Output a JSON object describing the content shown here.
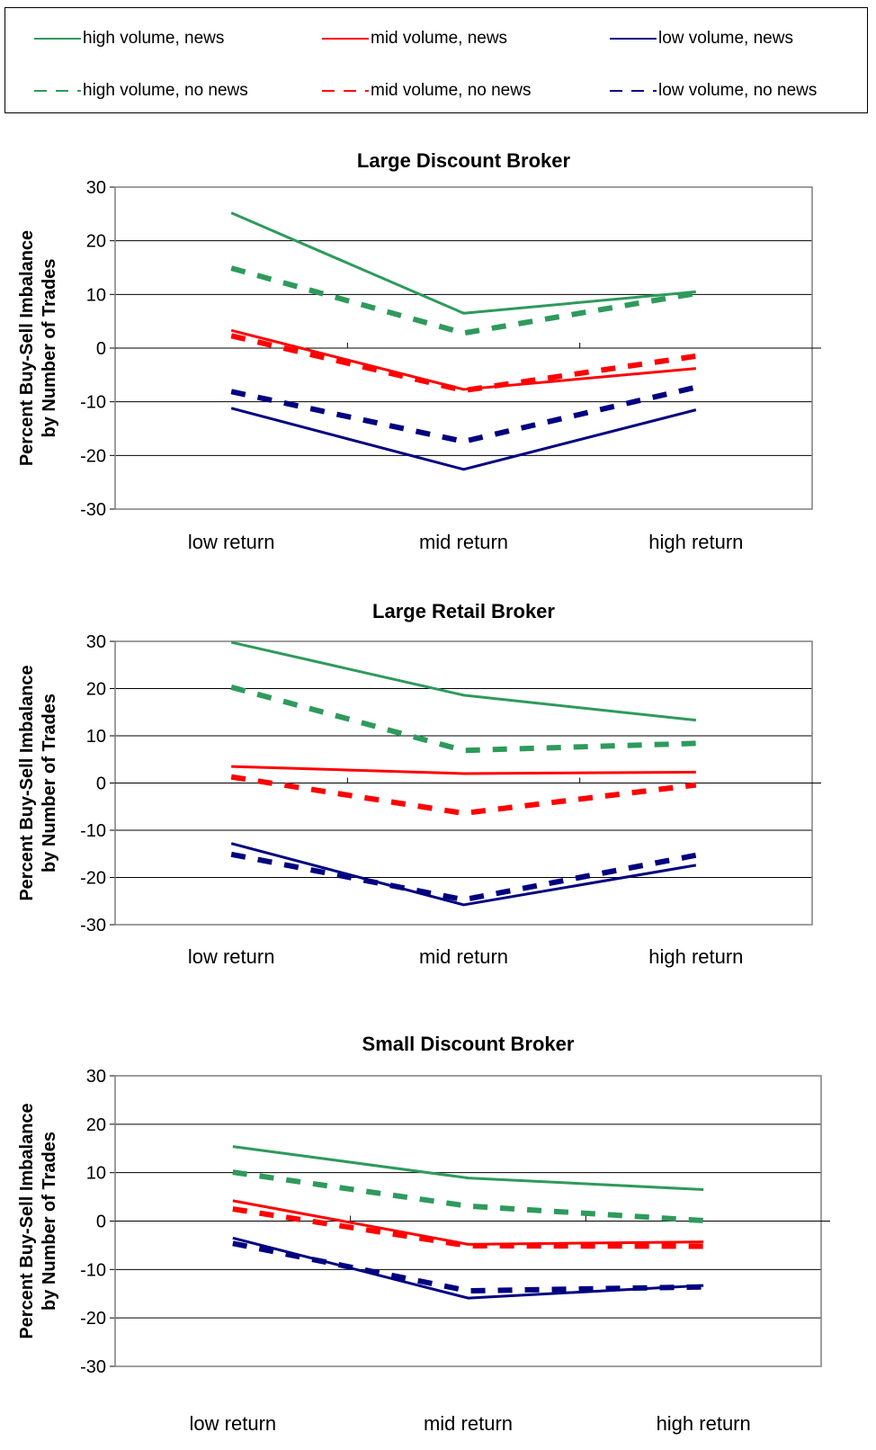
{
  "legend": [
    {
      "label": "high volume, news",
      "color": "#2e9a5c",
      "dashed": false
    },
    {
      "label": "mid volume, news",
      "color": "#ff0000",
      "dashed": false
    },
    {
      "label": "low volume, news",
      "color": "#000080",
      "dashed": false
    },
    {
      "label": "high volume, no news",
      "color": "#2e9a5c",
      "dashed": true
    },
    {
      "label": "mid volume, no news",
      "color": "#ff0000",
      "dashed": true
    },
    {
      "label": "low volume, no news",
      "color": "#000080",
      "dashed": true
    }
  ],
  "chart_data": [
    {
      "type": "line",
      "title": "Large Discount Broker",
      "ylabel": [
        "Percent Buy-Sell Imbalance",
        "by Number of Trades"
      ],
      "categories": [
        "low return",
        "mid return",
        "high return"
      ],
      "ylim": [
        -30,
        30
      ],
      "yticks": [
        30,
        20,
        10,
        0,
        -10,
        -20,
        -30
      ],
      "grid": true,
      "series": [
        {
          "name": "high volume, news",
          "color": "#2e9a5c",
          "dashed": false,
          "values": [
            25.2,
            6.5,
            10.5
          ]
        },
        {
          "name": "mid volume, news",
          "color": "#ff0000",
          "dashed": false,
          "values": [
            3.3,
            -7.7,
            -3.8
          ]
        },
        {
          "name": "low volume, news",
          "color": "#000080",
          "dashed": false,
          "values": [
            -11.2,
            -22.6,
            -11.5
          ]
        },
        {
          "name": "high volume, no news",
          "color": "#2e9a5c",
          "dashed": true,
          "values": [
            14.9,
            2.8,
            10.2
          ]
        },
        {
          "name": "mid volume, no news",
          "color": "#ff0000",
          "dashed": true,
          "values": [
            2.3,
            -7.9,
            -1.5
          ]
        },
        {
          "name": "low volume, no news",
          "color": "#000080",
          "dashed": true,
          "values": [
            -8.1,
            -17.4,
            -7.3
          ]
        }
      ]
    },
    {
      "type": "line",
      "title": "Large Retail Broker",
      "ylabel": [
        "Percent Buy-Sell Imbalance",
        "by Number of Trades"
      ],
      "categories": [
        "low return",
        "mid return",
        "high return"
      ],
      "ylim": [
        -30,
        30
      ],
      "yticks": [
        30,
        20,
        10,
        0,
        -10,
        -20,
        -30
      ],
      "grid": true,
      "series": [
        {
          "name": "high volume, news",
          "color": "#2e9a5c",
          "dashed": false,
          "values": [
            29.8,
            18.6,
            13.3
          ]
        },
        {
          "name": "mid volume, news",
          "color": "#ff0000",
          "dashed": false,
          "values": [
            3.5,
            2.0,
            2.3
          ]
        },
        {
          "name": "low volume, news",
          "color": "#000080",
          "dashed": false,
          "values": [
            -12.8,
            -25.8,
            -17.4
          ]
        },
        {
          "name": "high volume, no news",
          "color": "#2e9a5c",
          "dashed": true,
          "values": [
            20.3,
            6.9,
            8.4
          ]
        },
        {
          "name": "mid volume, no news",
          "color": "#ff0000",
          "dashed": true,
          "values": [
            1.3,
            -6.4,
            -0.4
          ]
        },
        {
          "name": "low volume, no news",
          "color": "#000080",
          "dashed": true,
          "values": [
            -15.1,
            -24.7,
            -15.3
          ]
        }
      ]
    },
    {
      "type": "line",
      "title": "Small Discount Broker",
      "ylabel": [
        "Percent Buy-Sell Imbalance",
        "by Number of Trades"
      ],
      "categories": [
        "low return",
        "mid return",
        "high return"
      ],
      "ylim": [
        -30,
        30
      ],
      "yticks": [
        30,
        20,
        10,
        0,
        -10,
        -20,
        -30
      ],
      "grid": true,
      "series": [
        {
          "name": "high volume, news",
          "color": "#2e9a5c",
          "dashed": false,
          "values": [
            15.4,
            8.9,
            6.5
          ]
        },
        {
          "name": "mid volume, news",
          "color": "#ff0000",
          "dashed": false,
          "values": [
            4.2,
            -4.8,
            -4.3
          ]
        },
        {
          "name": "low volume, news",
          "color": "#000080",
          "dashed": false,
          "values": [
            -3.5,
            -15.9,
            -13.3
          ]
        },
        {
          "name": "high volume, no news",
          "color": "#2e9a5c",
          "dashed": true,
          "values": [
            10.1,
            3.1,
            0.1
          ]
        },
        {
          "name": "mid volume, no news",
          "color": "#ff0000",
          "dashed": true,
          "values": [
            2.5,
            -5.1,
            -5.2
          ]
        },
        {
          "name": "low volume, no news",
          "color": "#000080",
          "dashed": true,
          "values": [
            -4.6,
            -14.4,
            -13.6
          ]
        }
      ]
    }
  ]
}
